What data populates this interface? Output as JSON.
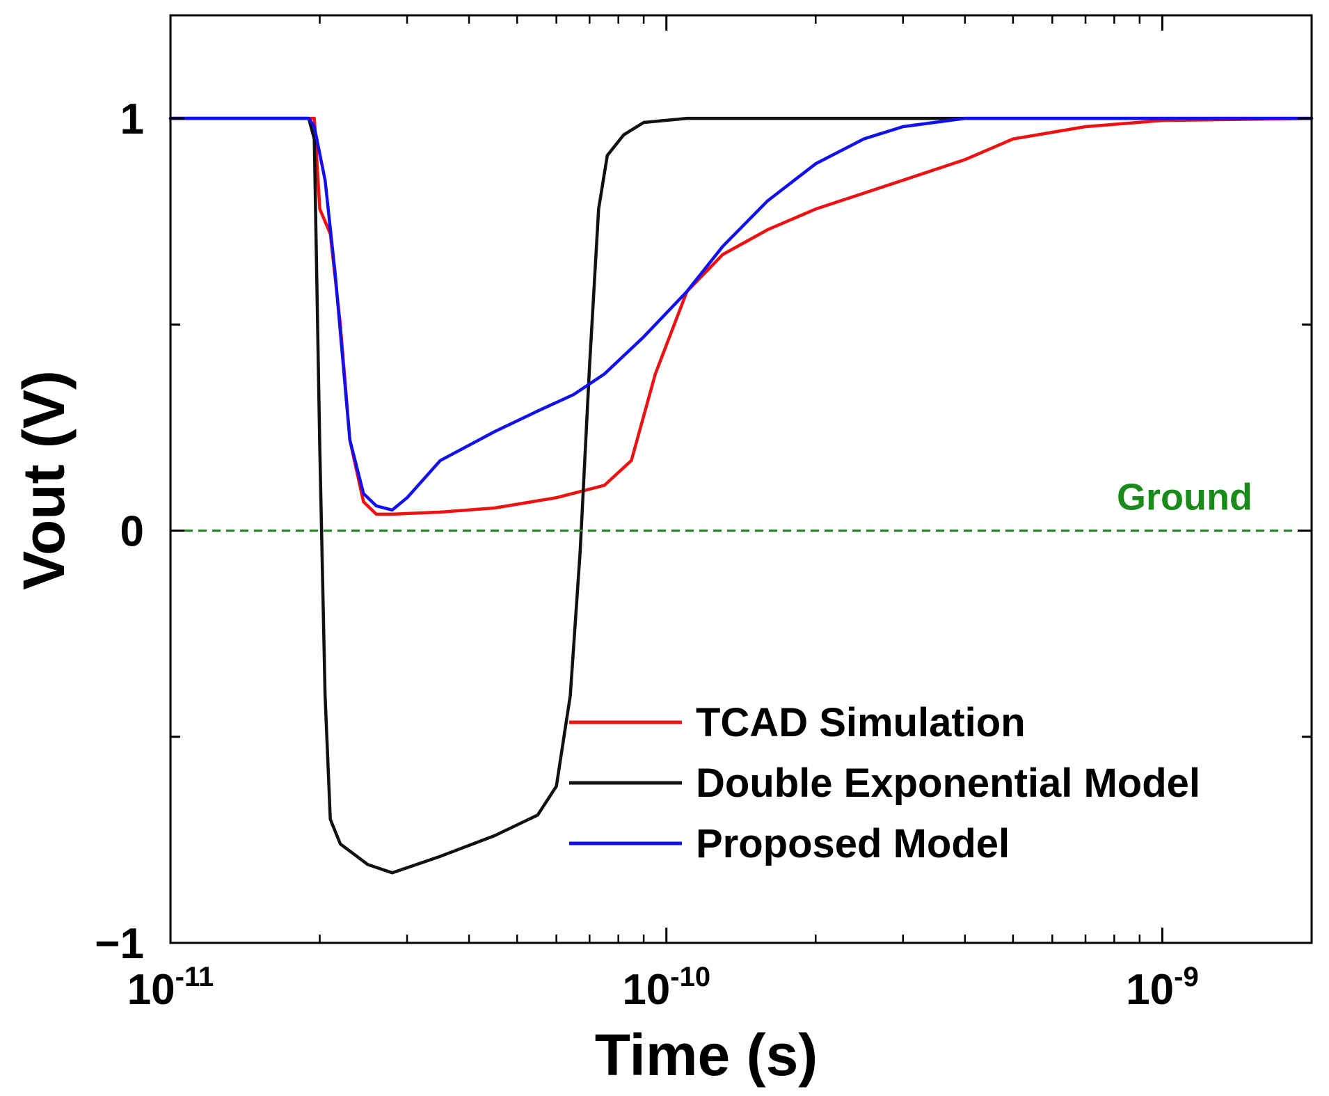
{
  "chart_data": {
    "type": "line",
    "title": "",
    "xlabel": "Time (s)",
    "ylabel": "Vout (V)",
    "xscale": "log",
    "xlim": [
      1e-11,
      2e-09
    ],
    "ylim": [
      -1,
      1.25
    ],
    "grid": false,
    "x_ticks": [
      {
        "value": 1e-11,
        "base": "10",
        "exp": "-11"
      },
      {
        "value": 1e-10,
        "base": "10",
        "exp": "-10"
      },
      {
        "value": 1e-09,
        "base": "10",
        "exp": "-9"
      }
    ],
    "y_ticks": [
      {
        "value": 1,
        "label": "1"
      },
      {
        "value": 0,
        "label": "0"
      },
      {
        "value": -1,
        "label": "−1"
      }
    ],
    "y_minor_ticks": [
      0.5,
      -0.5
    ],
    "reference_line": {
      "y": 0,
      "label": "Ground",
      "color": "#1a8a1a"
    },
    "legend_position": "bottom-right",
    "series": [
      {
        "name": "TCAD Simulation",
        "color": "#ee1111",
        "points": [
          [
            1e-11,
            1.0
          ],
          [
            1.9e-11,
            1.0
          ],
          [
            1.95e-11,
            1.0
          ],
          [
            2e-11,
            0.78
          ],
          [
            2.1e-11,
            0.72
          ],
          [
            2.2e-11,
            0.5
          ],
          [
            2.3e-11,
            0.22
          ],
          [
            2.45e-11,
            0.07
          ],
          [
            2.6e-11,
            0.04
          ],
          [
            2.8e-11,
            0.04
          ],
          [
            3.5e-11,
            0.045
          ],
          [
            4.5e-11,
            0.055
          ],
          [
            6e-11,
            0.08
          ],
          [
            7.5e-11,
            0.11
          ],
          [
            8.5e-11,
            0.17
          ],
          [
            9.5e-11,
            0.38
          ],
          [
            1.1e-10,
            0.58
          ],
          [
            1.3e-10,
            0.67
          ],
          [
            1.6e-10,
            0.73
          ],
          [
            2e-10,
            0.78
          ],
          [
            3e-10,
            0.85
          ],
          [
            4e-10,
            0.9
          ],
          [
            5e-10,
            0.95
          ],
          [
            7e-10,
            0.98
          ],
          [
            1e-09,
            0.995
          ],
          [
            2e-09,
            1.0
          ]
        ]
      },
      {
        "name": "Double Exponential Model",
        "color": "#111111",
        "points": [
          [
            1e-11,
            1.0
          ],
          [
            1.9e-11,
            1.0
          ],
          [
            1.95e-11,
            0.95
          ],
          [
            2e-11,
            0.2
          ],
          [
            2.05e-11,
            -0.4
          ],
          [
            2.1e-11,
            -0.7
          ],
          [
            2.2e-11,
            -0.76
          ],
          [
            2.5e-11,
            -0.81
          ],
          [
            2.8e-11,
            -0.83
          ],
          [
            3.5e-11,
            -0.79
          ],
          [
            4.5e-11,
            -0.74
          ],
          [
            5.5e-11,
            -0.69
          ],
          [
            6e-11,
            -0.62
          ],
          [
            6.4e-11,
            -0.4
          ],
          [
            6.7e-11,
            -0.05
          ],
          [
            7e-11,
            0.4
          ],
          [
            7.3e-11,
            0.78
          ],
          [
            7.6e-11,
            0.91
          ],
          [
            8.2e-11,
            0.96
          ],
          [
            9e-11,
            0.99
          ],
          [
            1.1e-10,
            1.0
          ],
          [
            2e-09,
            1.0
          ]
        ]
      },
      {
        "name": "Proposed Model",
        "color": "#1111ee",
        "points": [
          [
            1e-11,
            1.0
          ],
          [
            1.9e-11,
            1.0
          ],
          [
            1.95e-11,
            0.98
          ],
          [
            2.05e-11,
            0.85
          ],
          [
            2.15e-11,
            0.62
          ],
          [
            2.3e-11,
            0.22
          ],
          [
            2.45e-11,
            0.09
          ],
          [
            2.6e-11,
            0.06
          ],
          [
            2.8e-11,
            0.05
          ],
          [
            3e-11,
            0.08
          ],
          [
            3.5e-11,
            0.17
          ],
          [
            4.5e-11,
            0.24
          ],
          [
            5.5e-11,
            0.29
          ],
          [
            6.5e-11,
            0.33
          ],
          [
            7.5e-11,
            0.38
          ],
          [
            9e-11,
            0.47
          ],
          [
            1.1e-10,
            0.58
          ],
          [
            1.3e-10,
            0.69
          ],
          [
            1.6e-10,
            0.8
          ],
          [
            2e-10,
            0.89
          ],
          [
            2.5e-10,
            0.95
          ],
          [
            3e-10,
            0.98
          ],
          [
            4e-10,
            1.0
          ],
          [
            2e-09,
            1.0
          ]
        ]
      }
    ]
  }
}
